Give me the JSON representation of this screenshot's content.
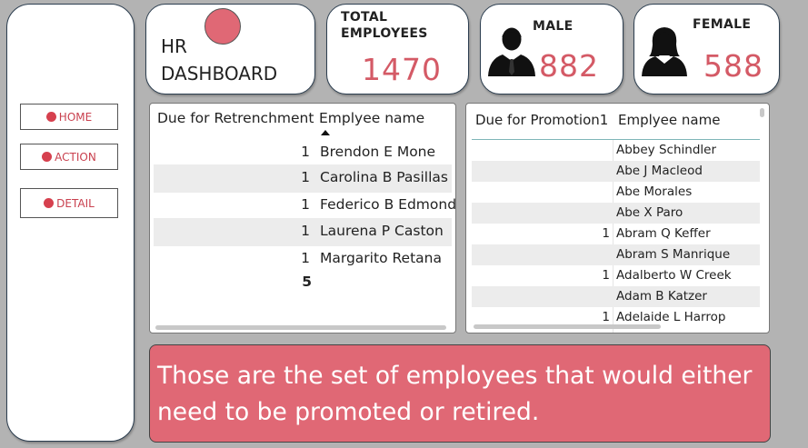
{
  "sidebar": {
    "items": [
      {
        "label": "HOME"
      },
      {
        "label": "ACTION"
      },
      {
        "label": "DETAIL"
      }
    ]
  },
  "title": {
    "line1": "HR",
    "line2": "DASHBOARD"
  },
  "kpis": {
    "total": {
      "label_line1": "TOTAL",
      "label_line2": "EMPLOYEES",
      "value": "1470"
    },
    "male": {
      "label": "MALE",
      "value": "882",
      "icon": "male-person-icon"
    },
    "female": {
      "label": "FEMALE",
      "value": "588",
      "icon": "female-person-icon"
    }
  },
  "retrenchment": {
    "headers": [
      "Due for Retrenchment",
      "Emplyee name"
    ],
    "rows": [
      {
        "value": "1",
        "name": "Brendon E Mone"
      },
      {
        "value": "1",
        "name": "Carolina B Pasillas"
      },
      {
        "value": "1",
        "name": "Federico B Edmond"
      },
      {
        "value": "1",
        "name": "Laurena P Caston"
      },
      {
        "value": "1",
        "name": "Margarito Retana"
      }
    ],
    "total": "5"
  },
  "promotion": {
    "headers": [
      "Due for Promotion1",
      "Emplyee name"
    ],
    "rows": [
      {
        "value": "",
        "name": "Abbey Schindler"
      },
      {
        "value": "",
        "name": "Abe J Macleod"
      },
      {
        "value": "",
        "name": "Abe Morales"
      },
      {
        "value": "",
        "name": "Abe X Paro"
      },
      {
        "value": "1",
        "name": "Abram Q Keffer"
      },
      {
        "value": "",
        "name": "Abram S Manrique"
      },
      {
        "value": "1",
        "name": "Adalberto W Creek"
      },
      {
        "value": "",
        "name": "Adam B Katzer"
      },
      {
        "value": "1",
        "name": "Adelaide L Harrop"
      }
    ]
  },
  "note": "Those are the set of employees that would either need to be promoted or retired.",
  "colors": {
    "accent": "#e06875",
    "value_text": "#d45a66",
    "background": "#b3b3b3"
  }
}
